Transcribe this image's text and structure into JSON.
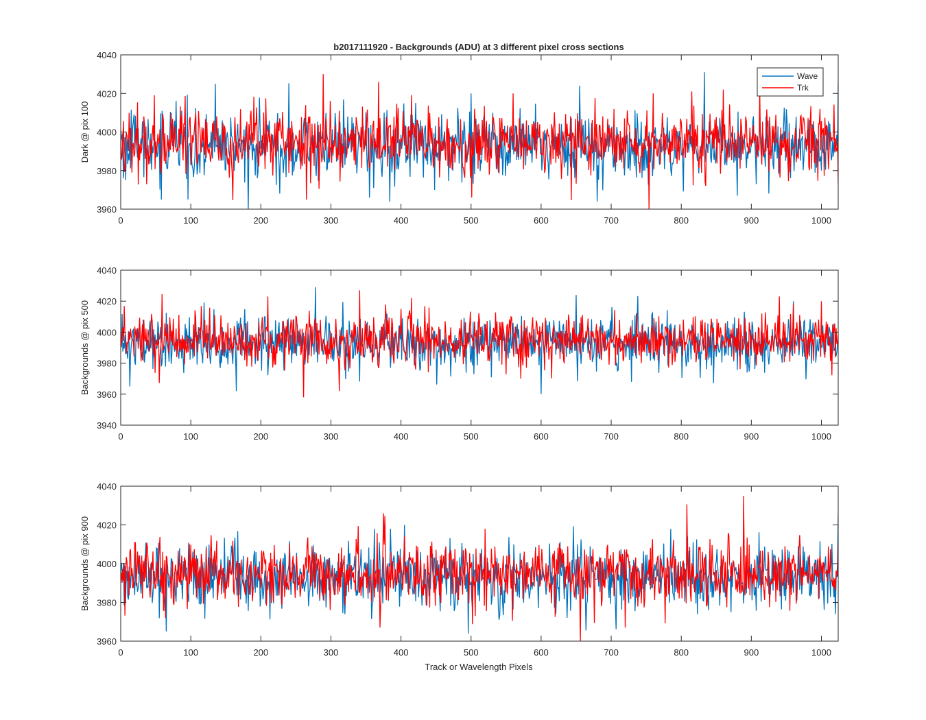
{
  "figure": {
    "title": "b2017111920 - Backgrounds (ADU) at 3 different pixel cross sections",
    "xlabel": "Track or Wavelength Pixels"
  },
  "chart_data": [
    {
      "type": "line",
      "title": "b2017111920 - Backgrounds (ADU) at 3 different pixel cross sections",
      "xlabel": "",
      "ylabel": "Dark @ pix 100",
      "xlim": [
        0,
        1024
      ],
      "ylim": [
        3960,
        4040
      ],
      "xticks": [
        0,
        100,
        200,
        300,
        400,
        500,
        600,
        700,
        800,
        900,
        1000
      ],
      "yticks": [
        3960,
        3980,
        4000,
        4020,
        4040
      ],
      "legend": {
        "placement": "top-right",
        "entries": [
          "Wave",
          "Trk"
        ]
      },
      "series": [
        {
          "name": "Wave",
          "color": "#0072bd",
          "mean": 3993,
          "noise": 8,
          "spikes": [
            [
              58,
              3965
            ],
            [
              135,
              4025
            ],
            [
              355,
              3966
            ],
            [
              500,
              4020
            ],
            [
              655,
              4024
            ],
            [
              680,
              3964
            ],
            [
              880,
              3967
            ],
            [
              1000,
              3980
            ],
            [
              1024,
              4026
            ]
          ]
        },
        {
          "name": "Trk",
          "color": "#ff0000",
          "mean": 3995,
          "noise": 8,
          "spikes": [
            [
              48,
              4019
            ],
            [
              265,
              3965
            ],
            [
              289,
              4030
            ],
            [
              368,
              4026
            ],
            [
              560,
              4020
            ],
            [
              760,
              4020
            ],
            [
              815,
              4021
            ],
            [
              860,
              4022
            ],
            [
              912,
              4022
            ],
            [
              1024,
              3973
            ]
          ]
        }
      ]
    },
    {
      "type": "line",
      "title": "",
      "xlabel": "",
      "ylabel": "Backgrounds @ pix 500",
      "xlim": [
        0,
        1024
      ],
      "ylim": [
        3940,
        4040
      ],
      "xticks": [
        0,
        100,
        200,
        300,
        400,
        500,
        600,
        700,
        800,
        900,
        1000
      ],
      "yticks": [
        3940,
        3960,
        3980,
        4000,
        4020,
        4040
      ],
      "series": [
        {
          "name": "Wave",
          "color": "#0072bd",
          "mean": 3993,
          "noise": 8,
          "spikes": [
            [
              13,
              3965
            ],
            [
              165,
              3962
            ],
            [
              278,
              4029
            ],
            [
              600,
              3960
            ],
            [
              650,
              4024
            ],
            [
              960,
              4020
            ]
          ]
        },
        {
          "name": "Trk",
          "color": "#ff0000",
          "mean": 3995,
          "noise": 8,
          "spikes": [
            [
              210,
              4023
            ],
            [
              261,
              3958
            ],
            [
              312,
              3962
            ],
            [
              341,
              4027
            ],
            [
              415,
              4022
            ],
            [
              940,
              4023
            ],
            [
              1000,
              4020
            ]
          ]
        }
      ]
    },
    {
      "type": "line",
      "title": "",
      "xlabel": "Track or Wavelength Pixels",
      "ylabel": "Backgrounds @ pix 900",
      "xlim": [
        0,
        1024
      ],
      "ylim": [
        3960,
        4040
      ],
      "xticks": [
        0,
        100,
        200,
        300,
        400,
        500,
        600,
        700,
        800,
        900,
        1000
      ],
      "yticks": [
        3960,
        3980,
        4000,
        4020,
        4040
      ],
      "series": [
        {
          "name": "Wave",
          "color": "#0072bd",
          "mean": 3993,
          "noise": 8,
          "spikes": [
            [
              65,
              3965
            ],
            [
              385,
              4018
            ],
            [
              405,
              4020
            ],
            [
              1020,
              3974
            ],
            [
              1024,
              4026
            ]
          ]
        },
        {
          "name": "Trk",
          "color": "#ff0000",
          "mean": 3995,
          "noise": 8,
          "spikes": [
            [
              375,
              4026
            ],
            [
              370,
              3967
            ],
            [
              520,
              4018
            ],
            [
              656,
              3960
            ],
            [
              720,
              3967
            ],
            [
              889,
              4035
            ],
            [
              1024,
              4010
            ]
          ]
        }
      ]
    }
  ]
}
